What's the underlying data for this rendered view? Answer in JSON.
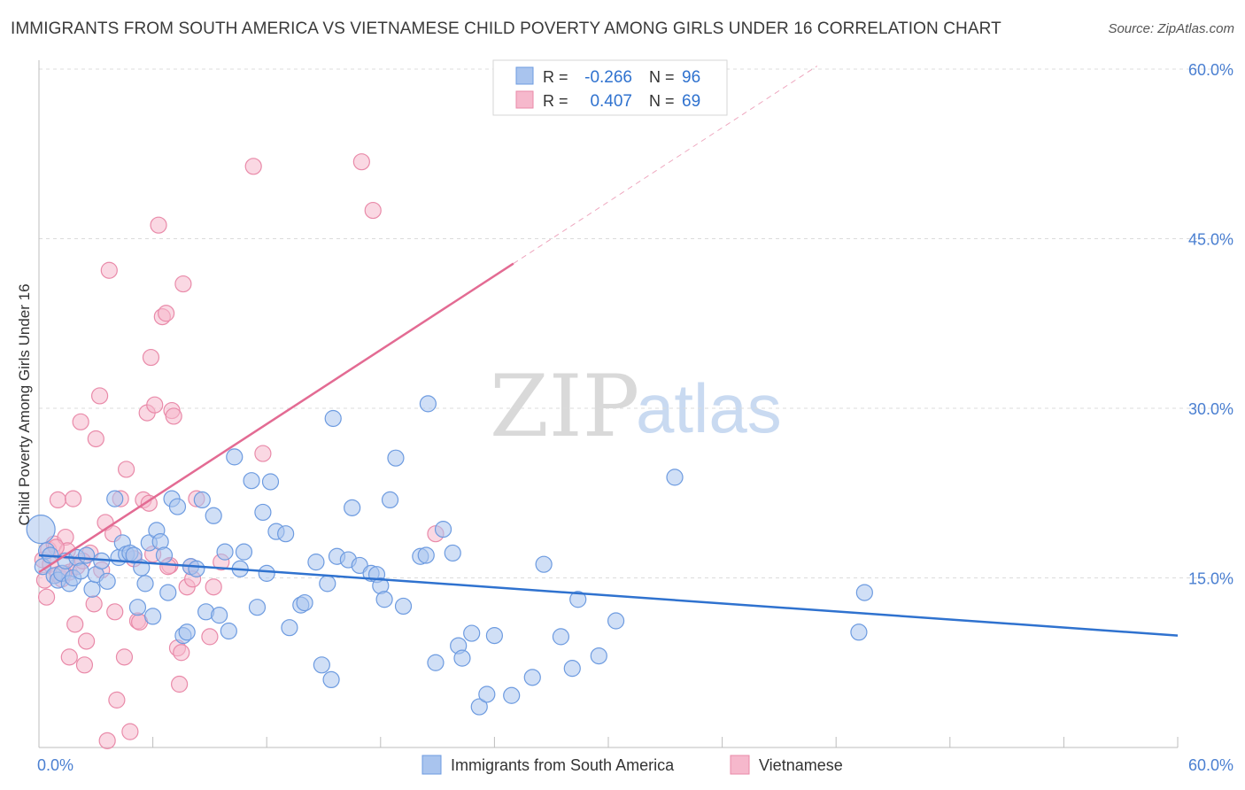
{
  "chart_data": {
    "type": "scatter",
    "title": "IMMIGRANTS FROM SOUTH AMERICA VS VIETNAMESE CHILD POVERTY AMONG GIRLS UNDER 16 CORRELATION CHART",
    "source": "Source: ZipAtlas.com",
    "xlabel": "",
    "ylabel": "Child Poverty Among Girls Under 16",
    "xlim": [
      0,
      60
    ],
    "ylim": [
      0,
      60
    ],
    "x_tick_labels": [
      "0.0%",
      "60.0%"
    ],
    "y_ticks": [
      15,
      30,
      45,
      60
    ],
    "y_tick_labels": [
      "15.0%",
      "30.0%",
      "45.0%",
      "60.0%"
    ],
    "watermark": {
      "zip": "ZIP",
      "atlas": "atlas"
    },
    "colors": {
      "blue_fill": "#a9c4ee",
      "blue_stroke": "#6d9be0",
      "blue_line": "#2f72cf",
      "pink_fill": "#f6b8cc",
      "pink_stroke": "#e98aa9",
      "pink_line": "#e36b93",
      "axis_text": "#4a7fd1",
      "grid": "#dcdcdc"
    },
    "legend_stats": [
      {
        "series": "Immigrants from South America",
        "r_label": "R =",
        "r_value": "-0.266",
        "n_label": "N =",
        "n_value": "96"
      },
      {
        "series": "Vietnamese",
        "r_label": "R =",
        "r_value": "0.407",
        "n_label": "N =",
        "n_value": "69"
      }
    ],
    "series": [
      {
        "name": "Immigrants from South America",
        "color": "blue",
        "trend": {
          "x0": 0,
          "y0": 17.0,
          "x1": 60,
          "y1": 9.9
        },
        "points": [
          [
            0.1,
            19.3
          ],
          [
            0.2,
            16.0
          ],
          [
            0.4,
            17.4
          ],
          [
            0.6,
            17.0
          ],
          [
            0.8,
            15.2
          ],
          [
            1.0,
            14.8
          ],
          [
            1.2,
            15.4
          ],
          [
            1.4,
            16.5
          ],
          [
            1.6,
            14.5
          ],
          [
            1.8,
            15.0
          ],
          [
            2.0,
            16.8
          ],
          [
            2.2,
            15.6
          ],
          [
            2.5,
            17.0
          ],
          [
            2.8,
            14.0
          ],
          [
            3.0,
            15.3
          ],
          [
            3.3,
            16.5
          ],
          [
            3.6,
            14.7
          ],
          [
            4.0,
            22.0
          ],
          [
            4.2,
            16.8
          ],
          [
            4.4,
            18.1
          ],
          [
            4.6,
            17.1
          ],
          [
            4.8,
            17.2
          ],
          [
            5.0,
            17.0
          ],
          [
            5.2,
            12.4
          ],
          [
            5.4,
            15.9
          ],
          [
            5.6,
            14.5
          ],
          [
            5.8,
            18.1
          ],
          [
            6.0,
            11.6
          ],
          [
            6.2,
            19.2
          ],
          [
            6.4,
            18.2
          ],
          [
            6.6,
            17.0
          ],
          [
            6.8,
            13.7
          ],
          [
            7.0,
            22.0
          ],
          [
            7.3,
            21.3
          ],
          [
            7.6,
            9.9
          ],
          [
            7.8,
            10.2
          ],
          [
            8.0,
            16.0
          ],
          [
            8.3,
            15.8
          ],
          [
            8.6,
            21.9
          ],
          [
            8.8,
            12.0
          ],
          [
            9.2,
            20.5
          ],
          [
            9.5,
            11.7
          ],
          [
            9.8,
            17.3
          ],
          [
            10.0,
            10.3
          ],
          [
            10.3,
            25.7
          ],
          [
            10.6,
            15.8
          ],
          [
            10.8,
            17.3
          ],
          [
            11.2,
            23.6
          ],
          [
            11.5,
            12.4
          ],
          [
            11.8,
            20.8
          ],
          [
            12.0,
            15.4
          ],
          [
            12.2,
            23.5
          ],
          [
            12.5,
            19.1
          ],
          [
            13.0,
            18.9
          ],
          [
            13.2,
            10.6
          ],
          [
            13.8,
            12.6
          ],
          [
            14.0,
            12.8
          ],
          [
            14.6,
            16.4
          ],
          [
            14.9,
            7.3
          ],
          [
            15.2,
            14.5
          ],
          [
            15.4,
            6.0
          ],
          [
            15.5,
            29.1
          ],
          [
            15.7,
            16.9
          ],
          [
            16.3,
            16.6
          ],
          [
            16.5,
            21.2
          ],
          [
            16.9,
            16.1
          ],
          [
            17.5,
            15.4
          ],
          [
            17.8,
            15.3
          ],
          [
            18.0,
            14.3
          ],
          [
            18.2,
            13.1
          ],
          [
            18.5,
            21.9
          ],
          [
            18.8,
            25.6
          ],
          [
            19.2,
            12.5
          ],
          [
            20.1,
            16.9
          ],
          [
            20.4,
            17.0
          ],
          [
            20.5,
            30.4
          ],
          [
            20.9,
            7.5
          ],
          [
            21.3,
            19.3
          ],
          [
            21.8,
            17.2
          ],
          [
            22.1,
            9.0
          ],
          [
            22.3,
            7.9
          ],
          [
            22.8,
            10.1
          ],
          [
            23.2,
            3.6
          ],
          [
            23.6,
            4.7
          ],
          [
            24.0,
            9.9
          ],
          [
            24.9,
            4.6
          ],
          [
            26.0,
            6.2
          ],
          [
            26.6,
            16.2
          ],
          [
            27.5,
            9.8
          ],
          [
            28.1,
            7.0
          ],
          [
            28.4,
            13.1
          ],
          [
            29.5,
            8.1
          ],
          [
            30.4,
            11.2
          ],
          [
            33.5,
            23.9
          ],
          [
            43.2,
            10.2
          ],
          [
            43.5,
            13.7
          ]
        ]
      },
      {
        "name": "Vietnamese",
        "color": "pink",
        "trend": {
          "x0": 0,
          "y0": 15.5,
          "x1": 25,
          "y1": 42.8,
          "dash_to_x": 41
        },
        "points": [
          [
            0.2,
            16.6
          ],
          [
            0.3,
            14.8
          ],
          [
            0.4,
            13.3
          ],
          [
            0.5,
            17.5
          ],
          [
            0.6,
            16.2
          ],
          [
            0.8,
            18.0
          ],
          [
            1.0,
            15.3
          ],
          [
            1.0,
            21.9
          ],
          [
            1.2,
            14.9
          ],
          [
            1.4,
            18.6
          ],
          [
            1.5,
            17.4
          ],
          [
            1.6,
            15.5
          ],
          [
            1.6,
            8.0
          ],
          [
            1.8,
            22.0
          ],
          [
            1.9,
            10.9
          ],
          [
            2.0,
            16.0
          ],
          [
            2.2,
            28.8
          ],
          [
            2.4,
            7.3
          ],
          [
            2.5,
            9.4
          ],
          [
            2.7,
            17.2
          ],
          [
            2.9,
            12.7
          ],
          [
            3.0,
            27.3
          ],
          [
            3.2,
            31.1
          ],
          [
            3.3,
            15.7
          ],
          [
            3.5,
            19.9
          ],
          [
            3.6,
            0.6
          ],
          [
            3.9,
            18.9
          ],
          [
            4.0,
            12.0
          ],
          [
            4.1,
            4.2
          ],
          [
            4.3,
            22.0
          ],
          [
            4.5,
            8.0
          ],
          [
            4.6,
            24.6
          ],
          [
            4.8,
            1.4
          ],
          [
            5.0,
            16.7
          ],
          [
            5.2,
            11.2
          ],
          [
            5.3,
            11.1
          ],
          [
            5.5,
            21.9
          ],
          [
            5.7,
            29.6
          ],
          [
            5.9,
            34.5
          ],
          [
            6.0,
            17.1
          ],
          [
            6.1,
            30.3
          ],
          [
            6.3,
            46.2
          ],
          [
            6.5,
            38.1
          ],
          [
            6.7,
            38.4
          ],
          [
            6.9,
            16.1
          ],
          [
            7.0,
            29.8
          ],
          [
            7.1,
            29.3
          ],
          [
            7.3,
            8.8
          ],
          [
            7.4,
            5.6
          ],
          [
            7.5,
            8.4
          ],
          [
            7.6,
            41.0
          ],
          [
            7.8,
            14.2
          ],
          [
            8.0,
            16.0
          ],
          [
            8.1,
            14.9
          ],
          [
            8.3,
            22.0
          ],
          [
            9.0,
            9.8
          ],
          [
            9.2,
            14.2
          ],
          [
            9.6,
            16.4
          ],
          [
            11.3,
            51.4
          ],
          [
            11.8,
            26.0
          ],
          [
            17.0,
            51.8
          ],
          [
            17.6,
            47.5
          ],
          [
            20.9,
            18.9
          ],
          [
            3.7,
            42.2
          ],
          [
            6.8,
            16.0
          ],
          [
            2.3,
            16.5
          ],
          [
            1.3,
            15.4
          ],
          [
            0.9,
            17.7
          ],
          [
            5.8,
            21.6
          ]
        ]
      }
    ]
  },
  "legend": {
    "items": [
      {
        "label": "Immigrants from South America"
      },
      {
        "label": "Vietnamese"
      }
    ]
  }
}
